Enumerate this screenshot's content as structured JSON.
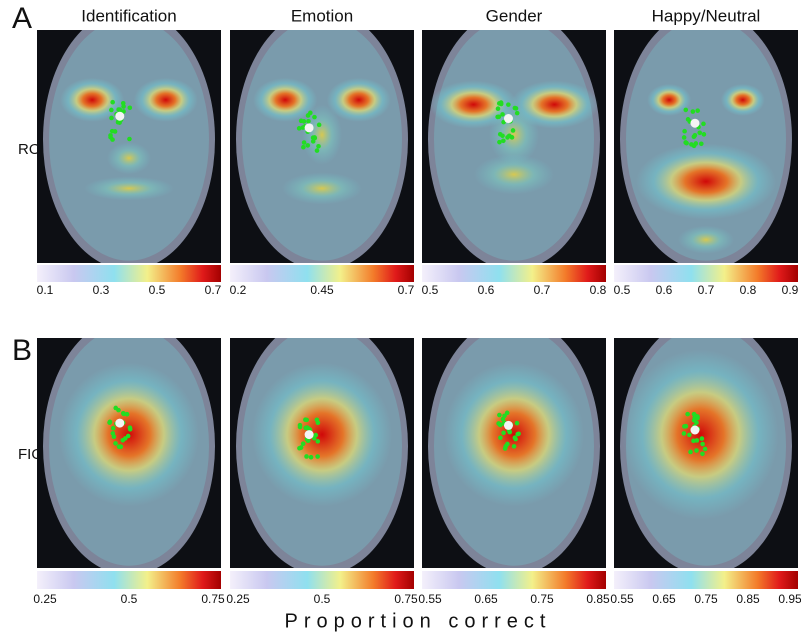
{
  "panel_labels": [
    "A",
    "B"
  ],
  "columns": [
    "Identification",
    "Emotion",
    "Gender",
    "Happy/Neutral"
  ],
  "rows": [
    {
      "label": "ROI",
      "colorbars": [
        {
          "ticks": [
            0.1,
            0.3,
            0.5,
            0.7
          ]
        },
        {
          "ticks": [
            0.2,
            0.45,
            0.7
          ]
        },
        {
          "ticks": [
            0.5,
            0.6,
            0.7,
            0.8
          ]
        },
        {
          "ticks": [
            0.5,
            0.6,
            0.7,
            0.8,
            0.9
          ]
        }
      ]
    },
    {
      "label": "FIO",
      "colorbars": [
        {
          "ticks": [
            0.25,
            0.5,
            0.75
          ]
        },
        {
          "ticks": [
            0.25,
            0.5,
            0.75
          ]
        },
        {
          "ticks": [
            0.55,
            0.65,
            0.75,
            0.85
          ]
        },
        {
          "ticks": [
            0.55,
            0.65,
            0.75,
            0.85,
            0.95
          ]
        }
      ]
    }
  ],
  "xlabel": "Proportion correct"
}
